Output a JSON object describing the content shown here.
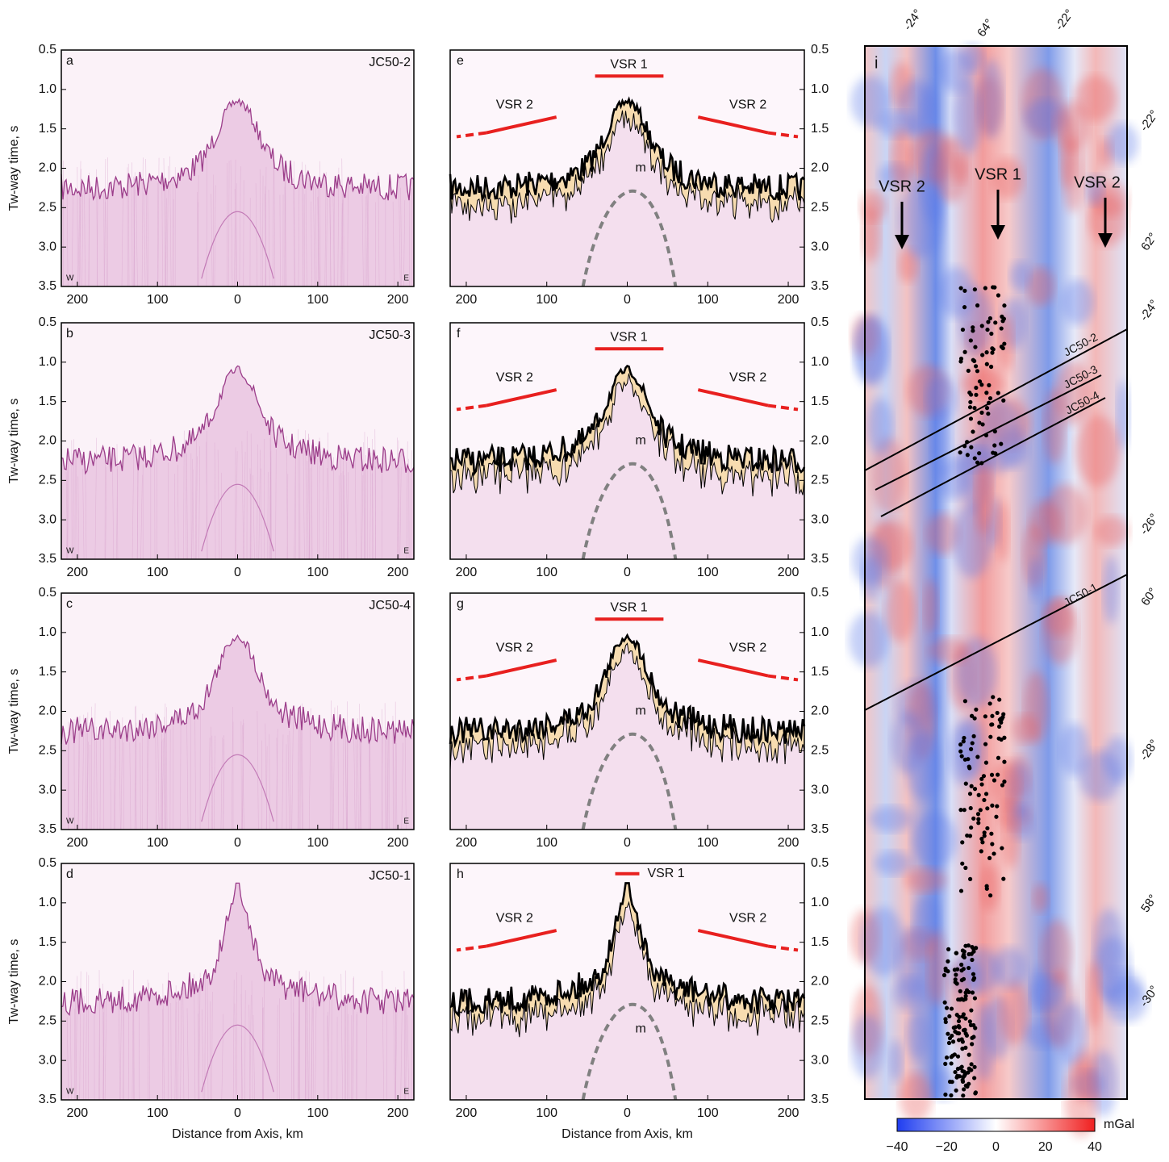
{
  "axes": {
    "y_title": "Tw-way time, s",
    "x_title": "Distance from Axis, km",
    "yticks": [
      "0.5",
      "1.0",
      "1.5",
      "2.0",
      "2.5",
      "3.0",
      "3.5"
    ],
    "xticks": [
      "200",
      "100",
      "0",
      "100",
      "200"
    ]
  },
  "seismic_panels": [
    {
      "letter": "a",
      "line": "JC50-2",
      "west": "W",
      "east": "E"
    },
    {
      "letter": "b",
      "line": "JC50-3",
      "west": "W",
      "east": "E"
    },
    {
      "letter": "c",
      "line": "JC50-4",
      "west": "W",
      "east": "E"
    },
    {
      "letter": "d",
      "line": "JC50-1",
      "west": "W",
      "east": "E"
    }
  ],
  "interpreted_panels": [
    {
      "letter": "e",
      "axis_ridge": "VSR 1",
      "left_ridge": "VSR 2",
      "right_ridge": "VSR 2",
      "moho": "m"
    },
    {
      "letter": "f",
      "axis_ridge": "VSR 1",
      "left_ridge": "VSR 2",
      "right_ridge": "VSR 2",
      "moho": "m"
    },
    {
      "letter": "g",
      "axis_ridge": "VSR 1",
      "left_ridge": "VSR 2",
      "right_ridge": "VSR 2",
      "moho": "m"
    },
    {
      "letter": "h",
      "axis_ridge": "VSR 1",
      "left_ridge": "VSR 2",
      "right_ridge": "VSR 2",
      "moho": "m"
    }
  ],
  "map": {
    "letter": "i",
    "arrows": [
      "VSR 2",
      "VSR 1",
      "VSR 2"
    ],
    "lines": [
      "JC50-2",
      "JC50-3",
      "JC50-4",
      "JC50-1"
    ],
    "top_labels": [
      "-24°",
      "64°",
      "-22°"
    ],
    "side_labels": [
      "-22°",
      "62°",
      "-24°",
      "-26°",
      "60°",
      "-28°",
      "58°",
      "-30°"
    ],
    "colorbar": {
      "unit": "mGal",
      "ticks": [
        "−40",
        "−20",
        "0",
        "20",
        "40"
      ]
    }
  }
}
